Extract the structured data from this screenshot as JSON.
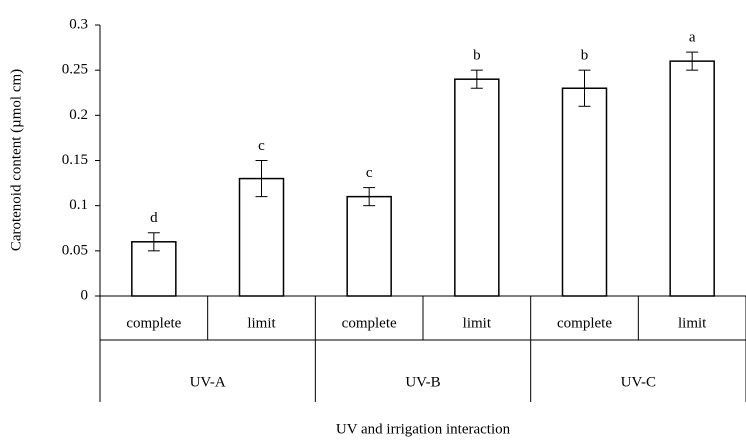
{
  "chart_data": {
    "type": "bar",
    "y_label": "Carotenoid content  (µmol cm)",
    "x_label": "UV and irrigation interaction",
    "categories": [
      "complete",
      "limit",
      "complete",
      "limit",
      "complete",
      "limit"
    ],
    "groups": [
      "UV-A",
      "UV-B",
      "UV-C"
    ],
    "values": [
      0.06,
      0.13,
      0.11,
      0.24,
      0.23,
      0.26
    ],
    "errors": [
      0.01,
      0.02,
      0.01,
      0.01,
      0.02,
      0.01
    ],
    "annotations": [
      "d",
      "c",
      "c",
      "b",
      "b",
      "a"
    ],
    "color": "#ffffff",
    "ylim": [
      0,
      0.3
    ],
    "yticks": [
      0,
      0.05,
      0.1,
      0.15,
      0.2,
      0.25,
      0.3
    ],
    "grid": false
  }
}
